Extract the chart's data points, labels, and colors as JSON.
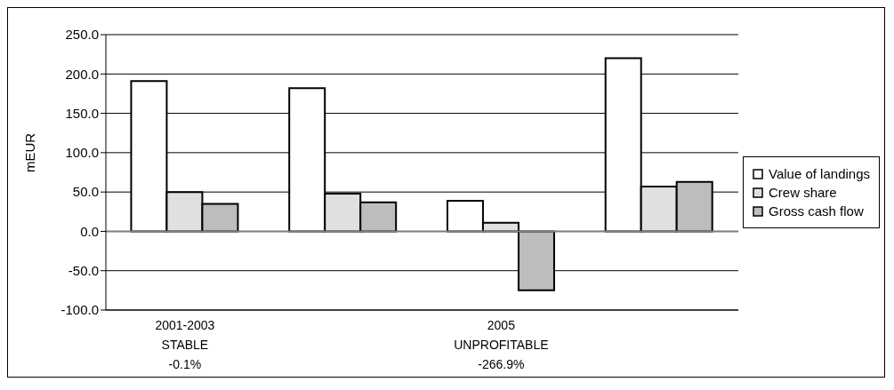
{
  "chart_data": {
    "type": "bar",
    "ylabel": "mEUR",
    "categories": [
      "2001-2003\nSTABLE\n-0.1%",
      null,
      "2005\nUNPROFITABLE\n-266.9%",
      null
    ],
    "series": [
      {
        "name": "Value of landings",
        "color": "#ffffff",
        "values": [
          191,
          182,
          39,
          220
        ]
      },
      {
        "name": "Crew share",
        "color": "#e0e0e0",
        "values": [
          50,
          48,
          11,
          57
        ]
      },
      {
        "name": "Gross cash flow",
        "color": "#bdbdbd",
        "values": [
          35,
          37,
          -75,
          63
        ]
      }
    ],
    "ylim": [
      -100,
      250
    ],
    "yticks": [
      {
        "value": -100,
        "label": "-100.0"
      },
      {
        "value": -50,
        "label": "-50.0"
      },
      {
        "value": 0,
        "label": "0.0"
      },
      {
        "value": 50,
        "label": "50.0"
      },
      {
        "value": 100,
        "label": "100.0"
      },
      {
        "value": 150,
        "label": "150.0"
      },
      {
        "value": 200,
        "label": "200.0"
      },
      {
        "value": 250,
        "label": "250.0"
      }
    ],
    "grid": "y",
    "legend": "right"
  }
}
